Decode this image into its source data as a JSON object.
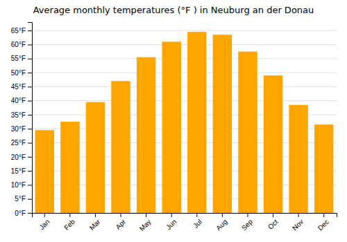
{
  "chart_data": {
    "type": "bar",
    "title": "Average monthly temperatures (°F ) in Neuburg an der Donau",
    "categories": [
      "Jan",
      "Feb",
      "Mar",
      "Apr",
      "May",
      "Jun",
      "Jul",
      "Aug",
      "Sep",
      "Oct",
      "Nov",
      "Dec"
    ],
    "values": [
      29.5,
      32.5,
      39.5,
      47.0,
      55.5,
      61.0,
      64.5,
      63.5,
      57.5,
      49.0,
      38.5,
      31.5
    ],
    "color": "#FFA500",
    "ylim": [
      0,
      68
    ],
    "yticks": [
      {
        "value": 0,
        "label": "0°F"
      },
      {
        "value": 5,
        "label": "5°F"
      },
      {
        "value": 10,
        "label": "10°F"
      },
      {
        "value": 15,
        "label": "15°F"
      },
      {
        "value": 20,
        "label": "20°F"
      },
      {
        "value": 25,
        "label": "25°F"
      },
      {
        "value": 30,
        "label": "30°F"
      },
      {
        "value": 35,
        "label": "35°F"
      },
      {
        "value": 40,
        "label": "40°F"
      },
      {
        "value": 45,
        "label": "45°F"
      },
      {
        "value": 50,
        "label": "50°F"
      },
      {
        "value": 55,
        "label": "55°F"
      },
      {
        "value": 60,
        "label": "60°F"
      },
      {
        "value": 65,
        "label": "65°F"
      }
    ],
    "grid": true
  }
}
